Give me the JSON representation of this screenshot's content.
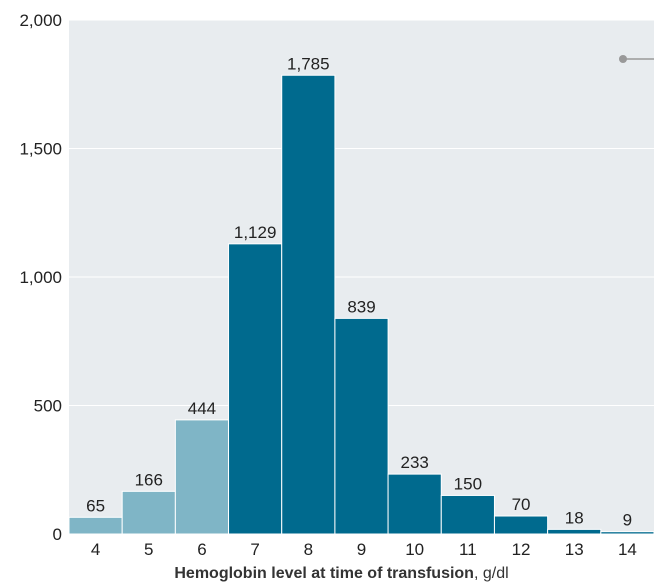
{
  "chart_data": {
    "type": "bar",
    "title": "",
    "categories": [
      "4",
      "5",
      "6",
      "7",
      "8",
      "9",
      "10",
      "11",
      "12",
      "13",
      "14"
    ],
    "values": [
      65,
      166,
      444,
      1129,
      1785,
      839,
      233,
      150,
      70,
      18,
      9
    ],
    "data_labels": [
      "65",
      "166",
      "444",
      "1,129",
      "1,785",
      "839",
      "233",
      "150",
      "70",
      "18",
      "9"
    ],
    "bar_shades": [
      "light",
      "light",
      "light",
      "dark",
      "dark",
      "dark",
      "dark",
      "dark",
      "dark",
      "dark",
      "dark"
    ],
    "ylim": [
      0,
      2000
    ],
    "yticks": [
      0,
      500,
      1000,
      1500,
      2000
    ],
    "ytick_labels": [
      "0",
      "500",
      "1,000",
      "1,500",
      "2,000"
    ],
    "xlabel": "Hemoglobin level at time of transfusion",
    "xlabel_unit": ", g/dl",
    "ylabel": "",
    "grid": true
  },
  "colors": {
    "plot_background": "#e8ecef",
    "gridline": "#ffffff",
    "bar_dark": "#006a8e",
    "bar_light": "#7fb5c6",
    "bar_edge": "#ffffff",
    "text": "#222222",
    "legend_marker": "#999999"
  }
}
